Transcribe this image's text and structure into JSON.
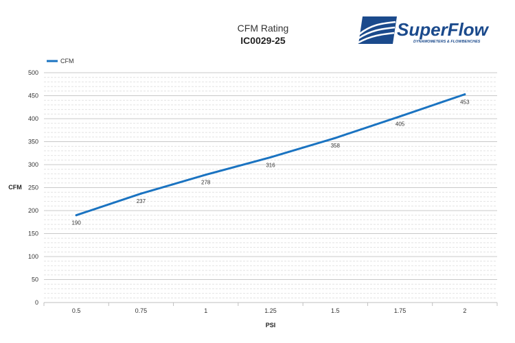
{
  "brand": {
    "name": "SuperFlow",
    "tagline": "DYNAMOMETERS & FLOWBENCHES",
    "color": "#1b4a8c"
  },
  "chart_data": {
    "type": "line",
    "title": "CFM Rating",
    "subtitle": "IC0029-25",
    "xlabel": "PSI",
    "ylabel": "CFM",
    "categories": [
      "0.5",
      "0.75",
      "1",
      "1.25",
      "1.5",
      "1.75",
      "2"
    ],
    "series": [
      {
        "name": "CFM",
        "color": "#1a73c1",
        "values": [
          190,
          237,
          278,
          316,
          358,
          405,
          453
        ]
      }
    ],
    "ylim": [
      0,
      500
    ],
    "yticks": [
      0,
      50,
      100,
      150,
      200,
      250,
      300,
      350,
      400,
      450,
      500
    ],
    "grid": true,
    "legend_position": "top-left"
  }
}
